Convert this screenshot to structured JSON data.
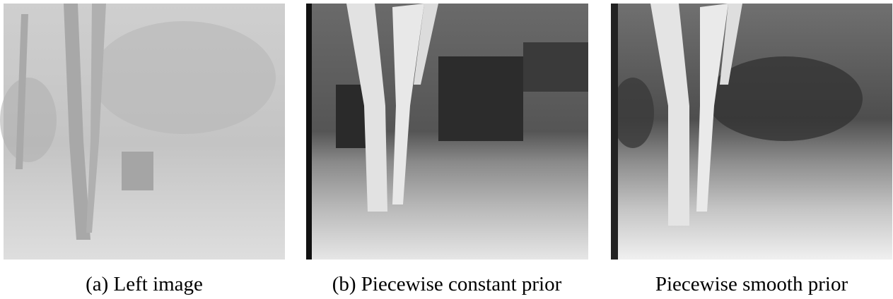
{
  "figure": {
    "panels": [
      {
        "caption": "(a) Left image"
      },
      {
        "caption": "(b) Piecewise constant prior"
      },
      {
        "caption": "Piecewise smooth prior"
      }
    ]
  }
}
